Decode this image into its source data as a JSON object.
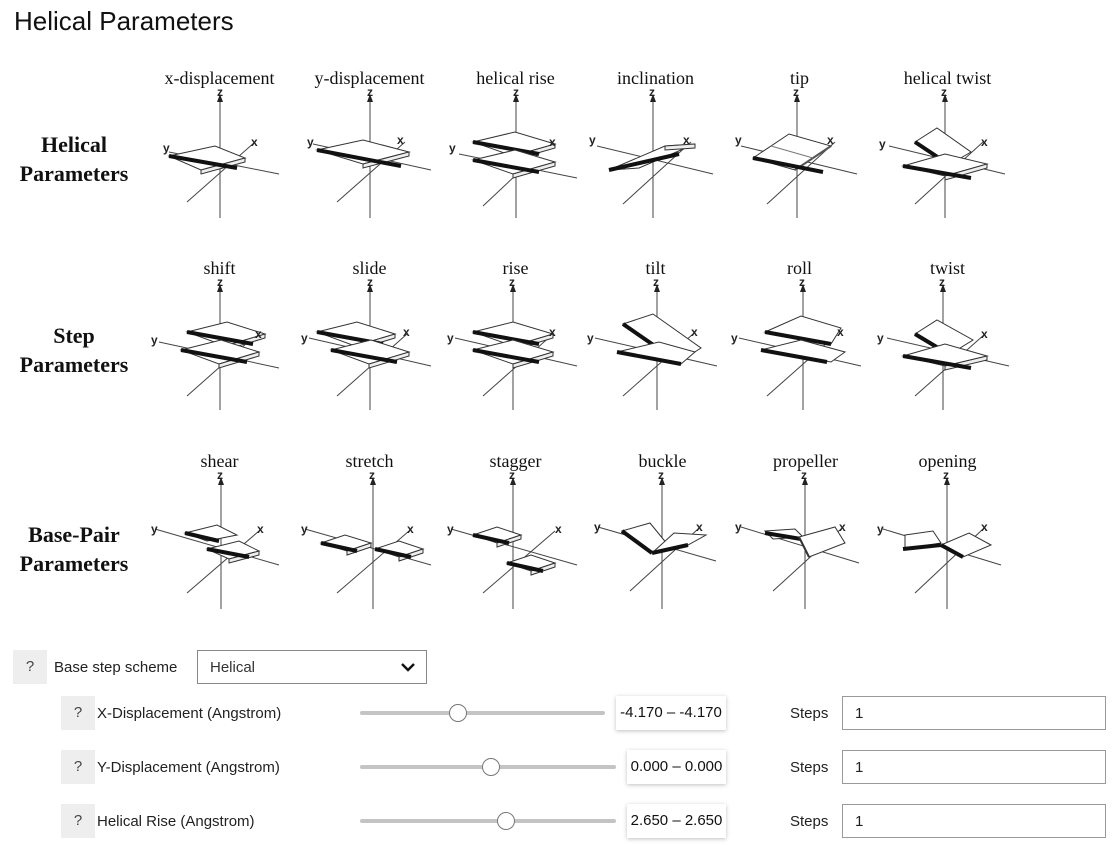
{
  "page": {
    "title": "Helical Parameters"
  },
  "figure": {
    "rows": [
      {
        "label_lines": [
          "Helical",
          "Parameters"
        ],
        "cells": [
          "x-displacement",
          "y-displacement",
          "helical rise",
          "inclination",
          "tip",
          "helical twist"
        ]
      },
      {
        "label_lines": [
          "Step",
          "Parameters"
        ],
        "cells": [
          "shift",
          "slide",
          "rise",
          "tilt",
          "roll",
          "twist"
        ]
      },
      {
        "label_lines": [
          "Base-Pair",
          "Parameters"
        ],
        "cells": [
          "shear",
          "stretch",
          "stagger",
          "buckle",
          "propeller",
          "opening"
        ]
      }
    ],
    "axis_labels": {
      "x": "x",
      "y": "y",
      "z": "z"
    }
  },
  "controls": {
    "help_label": "?",
    "scheme": {
      "label": "Base step scheme",
      "value": "Helical"
    },
    "parameters": [
      {
        "label": "X-Displacement (Angstrom)",
        "range": "-4.170 – -4.170",
        "value_fraction": 0.4,
        "steps_label": "Steps",
        "steps": "1"
      },
      {
        "label": "Y-Displacement (Angstrom)",
        "range": "0.000 – 0.000",
        "value_fraction": 0.51,
        "steps_label": "Steps",
        "steps": "1"
      },
      {
        "label": "Helical Rise (Angstrom)",
        "range": "2.650 – 2.650",
        "value_fraction": 0.57,
        "steps_label": "Steps",
        "steps": "1"
      }
    ]
  }
}
